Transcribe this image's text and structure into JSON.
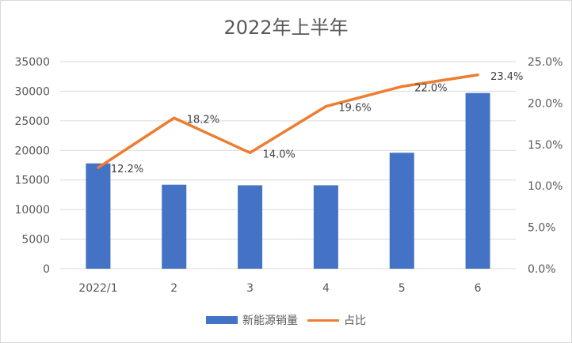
{
  "chart_data": {
    "type": "bar+line",
    "title": "2022年上半年",
    "categories": [
      "2022/1",
      "2",
      "3",
      "4",
      "5",
      "6"
    ],
    "series": [
      {
        "name": "新能源销量",
        "type": "bar",
        "axis": "left",
        "color": "#4472C4",
        "values": [
          17800,
          14200,
          14100,
          14100,
          19600,
          29700
        ]
      },
      {
        "name": "占比",
        "type": "line",
        "axis": "right",
        "color": "#ED7D31",
        "values": [
          12.2,
          18.2,
          14.0,
          19.6,
          22.0,
          23.4
        ],
        "labels": [
          "12.2%",
          "18.2%",
          "14.0%",
          "19.6%",
          "22.0%",
          "23.4%"
        ]
      }
    ],
    "y_left": {
      "range": [
        0,
        35000
      ],
      "ticks": [
        "0",
        "5000",
        "10000",
        "15000",
        "20000",
        "25000",
        "30000",
        "35000"
      ]
    },
    "y_right": {
      "range": [
        0,
        25
      ],
      "ticks": [
        "0.0%",
        "5.0%",
        "10.0%",
        "15.0%",
        "20.0%",
        "25.0%"
      ]
    },
    "grid": true,
    "legend_position": "bottom"
  }
}
